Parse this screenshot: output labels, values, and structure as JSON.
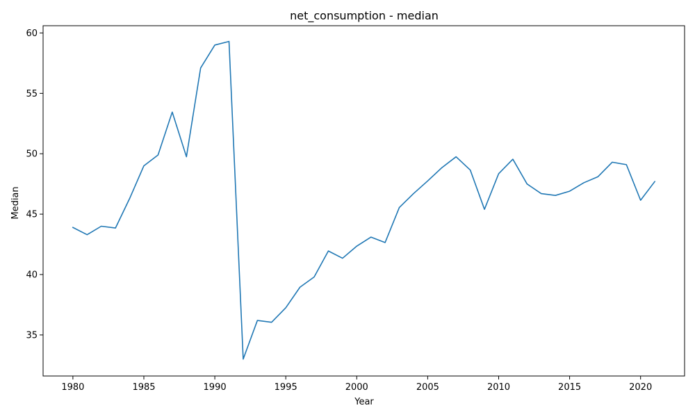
{
  "chart_data": {
    "type": "line",
    "title": "net_consumption - median",
    "xlabel": "Year",
    "ylabel": "Median",
    "xlim": [
      1977.9,
      2023.1
    ],
    "ylim": [
      31.6,
      60.6
    ],
    "xticks": [
      1980,
      1985,
      1990,
      1995,
      2000,
      2005,
      2010,
      2015,
      2020
    ],
    "yticks": [
      35,
      40,
      45,
      50,
      55,
      60
    ],
    "grid": false,
    "line_color": "#1f77b4",
    "series": [
      {
        "x": [
          1980,
          1981,
          1982,
          1983,
          1984,
          1985,
          1986,
          1987,
          1988,
          1989,
          1990,
          1991,
          1992,
          1993,
          1994,
          1995,
          1996,
          1997,
          1998,
          1999,
          2000,
          2001,
          2002,
          2003,
          2004,
          2005,
          2006,
          2007,
          2008,
          2009,
          2010,
          2011,
          2012,
          2013,
          2014,
          2015,
          2016,
          2017,
          2018,
          2019,
          2020,
          2021
        ],
        "values": [
          43.9,
          43.3,
          44.0,
          43.85,
          46.3,
          49.0,
          49.9,
          53.45,
          49.75,
          57.1,
          59.0,
          59.3,
          33.0,
          36.2,
          36.05,
          37.25,
          38.95,
          39.8,
          41.95,
          41.35,
          42.35,
          43.1,
          42.65,
          45.55,
          46.7,
          47.75,
          48.85,
          49.75,
          48.65,
          45.4,
          48.35,
          49.55,
          47.5,
          46.7,
          46.55,
          46.9,
          47.6,
          48.1,
          49.3,
          49.1,
          46.15,
          47.7
        ]
      }
    ]
  }
}
